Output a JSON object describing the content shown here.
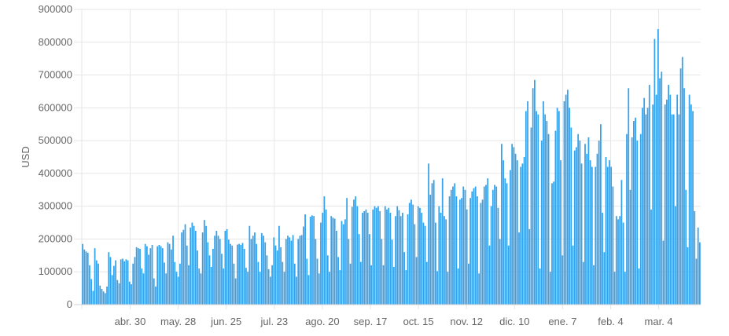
{
  "chart_data": {
    "type": "bar",
    "ylabel": "USD",
    "ylim": [
      0,
      900000
    ],
    "yticks": [
      "0",
      "100000",
      "200000",
      "300000",
      "400000",
      "500000",
      "600000",
      "700000",
      "800000",
      "900000"
    ],
    "xtick_labels": [
      "abr. 30",
      "may. 28",
      "jun. 25",
      "jul. 23",
      "ago. 20",
      "sep. 17",
      "oct. 15",
      "nov. 12",
      "dic. 10",
      "ene. 7",
      "feb. 4",
      "mar. 4"
    ],
    "grid": true,
    "bar_color": "#36a2eb",
    "bar_edge_color": "#1e88e5",
    "period_start": "abr. 1",
    "period_end": "mar. 31",
    "values": [
      185000,
      168000,
      162000,
      158000,
      120000,
      78000,
      42000,
      172000,
      135000,
      125000,
      58000,
      48000,
      40000,
      35000,
      55000,
      160000,
      145000,
      90000,
      118000,
      135000,
      75000,
      65000,
      138000,
      140000,
      132000,
      138000,
      135000,
      70000,
      62000,
      125000,
      145000,
      175000,
      172000,
      170000,
      110000,
      95000,
      185000,
      178000,
      152000,
      172000,
      182000,
      80000,
      55000,
      178000,
      182000,
      178000,
      172000,
      128000,
      95000,
      190000,
      185000,
      168000,
      210000,
      130000,
      100000,
      85000,
      125000,
      220000,
      228000,
      245000,
      180000,
      120000,
      235000,
      250000,
      240000,
      225000,
      165000,
      110000,
      95000,
      220000,
      258000,
      240000,
      190000,
      150000,
      115000,
      170000,
      210000,
      225000,
      210000,
      200000,
      155000,
      110000,
      225000,
      230000,
      198000,
      185000,
      180000,
      125000,
      80000,
      183000,
      185000,
      182000,
      188000,
      170000,
      112000,
      100000,
      240000,
      200000,
      210000,
      220000,
      185000,
      130000,
      100000,
      218000,
      210000,
      190000,
      150000,
      108000,
      85000,
      120000,
      205000,
      180000,
      165000,
      240000,
      175000,
      130000,
      100000,
      200000,
      210000,
      205000,
      195000,
      212000,
      125000,
      85000,
      200000,
      210000,
      212000,
      238000,
      275000,
      140000,
      90000,
      268000,
      272000,
      270000,
      200000,
      140000,
      95000,
      250000,
      280000,
      330000,
      290000,
      150000,
      100000,
      270000,
      265000,
      262000,
      225000,
      145000,
      105000,
      255000,
      245000,
      260000,
      325000,
      200000,
      125000,
      298000,
      320000,
      330000,
      300000,
      215000,
      130000,
      280000,
      285000,
      290000,
      280000,
      215000,
      120000,
      290000,
      300000,
      295000,
      300000,
      285000,
      200000,
      120000,
      300000,
      290000,
      295000,
      280000,
      198000,
      115000,
      270000,
      300000,
      288000,
      270000,
      280000,
      160000,
      105000,
      275000,
      310000,
      320000,
      305000,
      245000,
      145000,
      300000,
      295000,
      280000,
      250000,
      240000,
      130000,
      430000,
      335000,
      370000,
      380000,
      250000,
      102000,
      300000,
      280000,
      385000,
      270000,
      260000,
      100000,
      330000,
      350000,
      360000,
      370000,
      330000,
      110000,
      320000,
      325000,
      360000,
      350000,
      290000,
      125000,
      325000,
      345000,
      355000,
      360000,
      330000,
      95000,
      310000,
      320000,
      360000,
      365000,
      385000,
      180000,
      300000,
      350000,
      365000,
      360000,
      295000,
      200000,
      490000,
      440000,
      385000,
      370000,
      180000,
      410000,
      490000,
      480000,
      460000,
      440000,
      220000,
      420000,
      430000,
      450000,
      590000,
      620000,
      230000,
      540000,
      660000,
      685000,
      590000,
      580000,
      110000,
      500000,
      620000,
      580000,
      560000,
      520000,
      100000,
      370000,
      375000,
      530000,
      600000,
      590000,
      440000,
      150000,
      620000,
      640000,
      655000,
      600000,
      540000,
      180000,
      470000,
      480000,
      520000,
      500000,
      430000,
      130000,
      490000,
      460000,
      510000,
      440000,
      420000,
      120000,
      420000,
      460000,
      500000,
      550000,
      280000,
      160000,
      450000,
      420000,
      440000,
      420000,
      360000,
      100000,
      270000,
      260000,
      270000,
      380000,
      250000,
      100000,
      520000,
      660000,
      350000,
      510000,
      560000,
      570000,
      500000,
      110000,
      520000,
      600000,
      630000,
      580000,
      600000,
      670000,
      290000,
      610000,
      810000,
      640000,
      840000,
      690000,
      710000,
      195000,
      610000,
      625000,
      670000,
      640000,
      580000,
      580000,
      300000,
      640000,
      580000,
      720000,
      755000,
      660000,
      350000,
      175000,
      640000,
      610000,
      590000,
      285000,
      140000,
      235000,
      190000
    ]
  }
}
